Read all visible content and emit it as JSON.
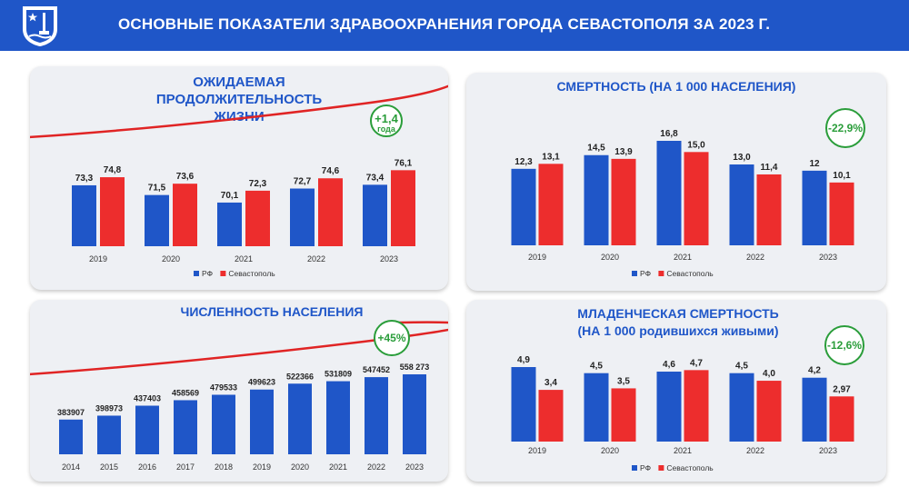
{
  "header": {
    "title": "ОСНОВНЫЕ ПОКАЗАТЕЛИ ЗДРАВООХРАНЕНИЯ ГОРОДА СЕВАСТОПОЛЯ ЗА 2023 Г.",
    "background": "#1f56c8"
  },
  "colors": {
    "rf": "#1f56c8",
    "sev": "#ed2d2d",
    "badge": "#2a9d3a",
    "arrow": "#e02424"
  },
  "chart_data": [
    {
      "id": "life",
      "type": "bar",
      "title": [
        "ОЖИДАЕМАЯ",
        "ПРОДОЛЖИТЕЛЬНОСТЬ",
        "ЖИЗНИ"
      ],
      "categories": [
        "2019",
        "2020",
        "2021",
        "2022",
        "2023"
      ],
      "series": [
        {
          "name": "РФ",
          "values": [
            73.3,
            71.5,
            70.1,
            72.7,
            73.4
          ],
          "labels": [
            "73,3",
            "71,5",
            "70,1",
            "72,7",
            "73,4"
          ]
        },
        {
          "name": "Севастополь",
          "values": [
            74.8,
            73.6,
            72.3,
            74.6,
            76.1
          ],
          "labels": [
            "74,8",
            "73,6",
            "72,3",
            "74,6",
            "76,1"
          ]
        }
      ],
      "badge": [
        "+1,4",
        "года"
      ],
      "legend": "bottom"
    },
    {
      "id": "mort",
      "type": "bar",
      "title": [
        "СМЕРТНОСТЬ (НА 1 000 НАСЕЛЕНИЯ)"
      ],
      "categories": [
        "2019",
        "2020",
        "2021",
        "2022",
        "2023"
      ],
      "series": [
        {
          "name": "РФ",
          "values": [
            12.3,
            14.5,
            16.8,
            13.0,
            12
          ],
          "labels": [
            "12,3",
            "14,5",
            "16,8",
            "13,0",
            "12"
          ]
        },
        {
          "name": "Севастополь",
          "values": [
            13.1,
            13.9,
            15.0,
            11.4,
            10.1
          ],
          "labels": [
            "13,1",
            "13,9",
            "15,0",
            "11,4",
            "10,1"
          ]
        }
      ],
      "badge": [
        "-22,9%"
      ],
      "legend": "bottom"
    },
    {
      "id": "pop",
      "type": "bar",
      "title": [
        "ЧИСЛЕННОСТЬ НАСЕЛЕНИЯ"
      ],
      "categories": [
        "2014",
        "2015",
        "2016",
        "2017",
        "2018",
        "2019",
        "2020",
        "2021",
        "2022",
        "2023"
      ],
      "series": [
        {
          "values": [
            383907,
            398973,
            437403,
            458569,
            479533,
            499623,
            522366,
            531809,
            547452,
            558273
          ],
          "labels": [
            "383907",
            "398973",
            "437403",
            "458569",
            "479533",
            "499623",
            "522366",
            "531809",
            "547452",
            "558 273"
          ]
        }
      ],
      "badge": [
        "+45%"
      ]
    },
    {
      "id": "infant",
      "type": "bar",
      "title": [
        "МЛАДЕНЧЕСКАЯ СМЕРТНОСТЬ",
        "(НА 1 000 родившихся живыми)"
      ],
      "categories": [
        "2019",
        "2020",
        "2021",
        "2022",
        "2023"
      ],
      "series": [
        {
          "name": "РФ",
          "values": [
            4.9,
            4.5,
            4.6,
            4.5,
            4.2
          ],
          "labels": [
            "4,9",
            "4,5",
            "4,6",
            "4,5",
            "4,2"
          ]
        },
        {
          "name": "Севастополь",
          "values": [
            3.4,
            3.5,
            4.7,
            4.0,
            2.97
          ],
          "labels": [
            "3,4",
            "3,5",
            "4,7",
            "4,0",
            "2,97"
          ]
        }
      ],
      "badge": [
        "-12,6%"
      ],
      "legend": "bottom"
    }
  ]
}
